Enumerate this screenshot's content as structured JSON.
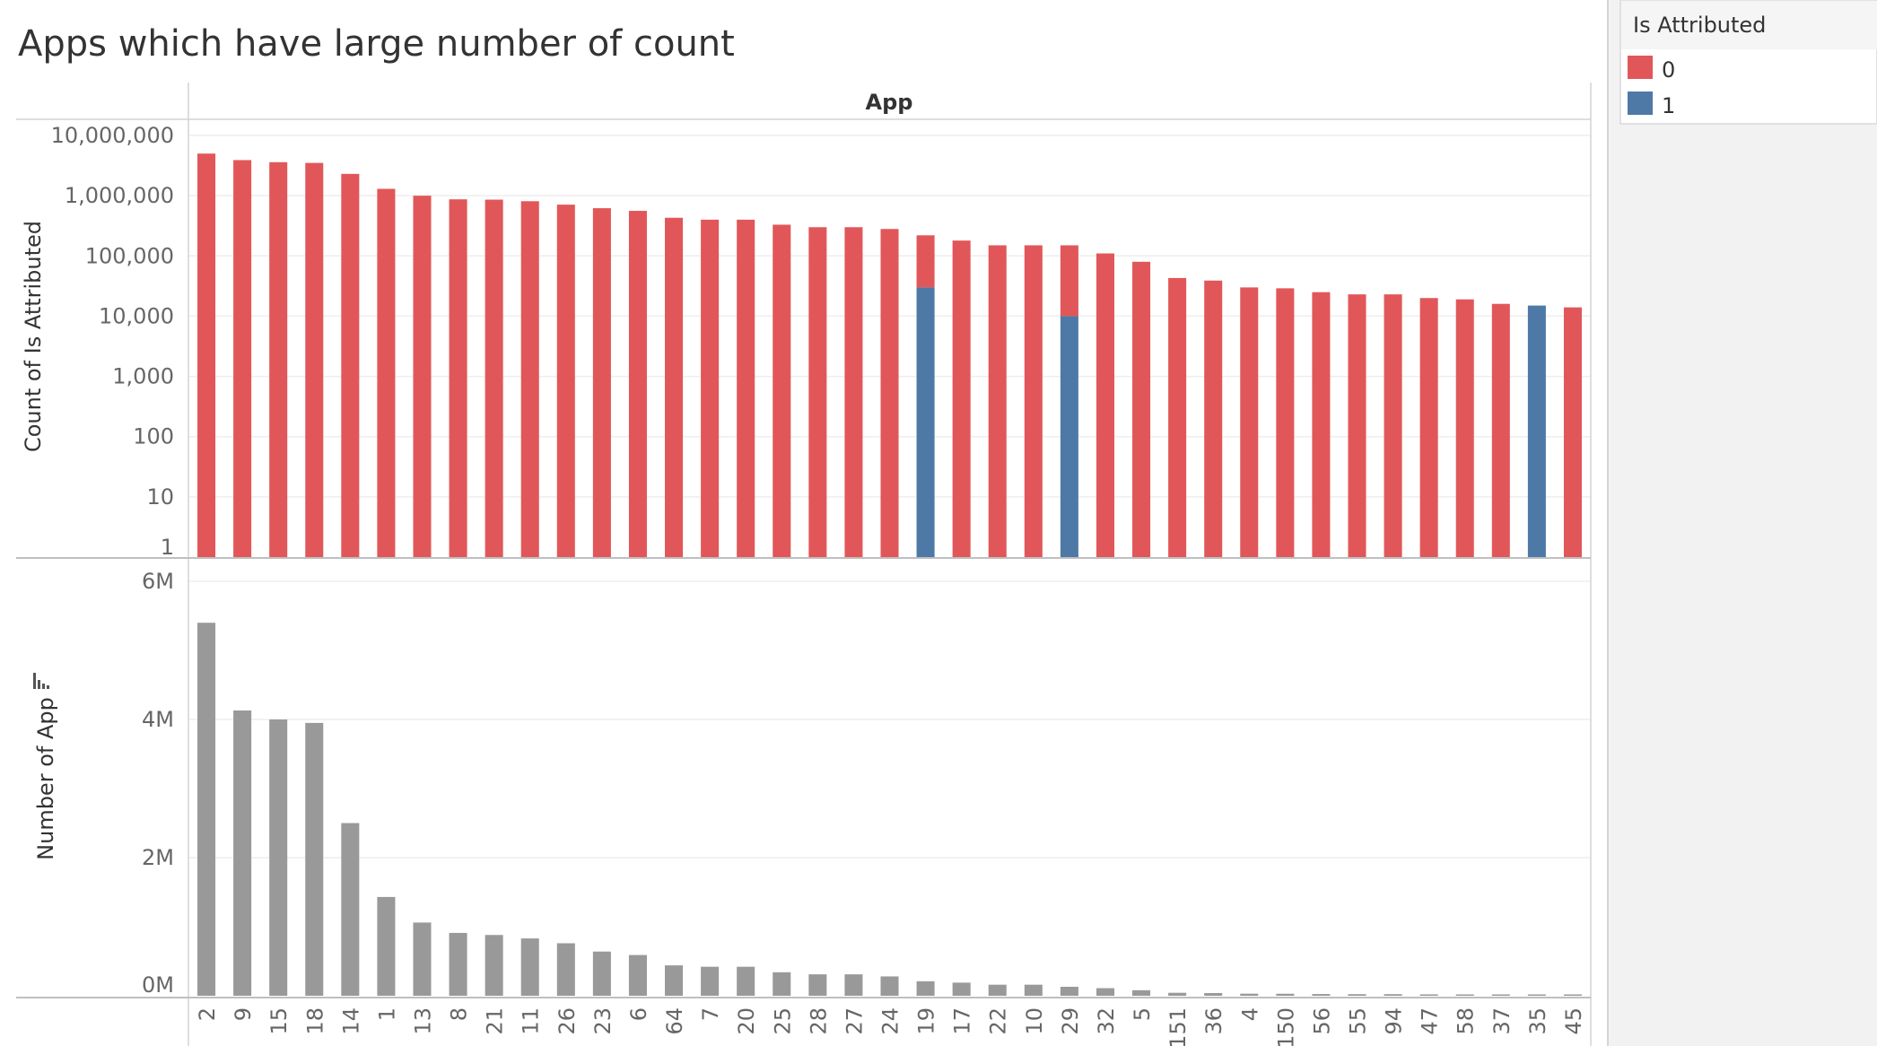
{
  "chart_data": {
    "title": "Apps which have large number of count",
    "column_header": "App",
    "categories": [
      "2",
      "9",
      "15",
      "18",
      "14",
      "1",
      "13",
      "8",
      "21",
      "11",
      "26",
      "23",
      "6",
      "64",
      "7",
      "20",
      "25",
      "28",
      "27",
      "24",
      "19",
      "17",
      "22",
      "10",
      "29",
      "32",
      "5",
      "151",
      "36",
      "4",
      "150",
      "56",
      "55",
      "94",
      "47",
      "58",
      "37",
      "35",
      "45"
    ],
    "legend": {
      "title": "Is Attributed",
      "entries": [
        {
          "label": "0",
          "color": "#e15759"
        },
        {
          "label": "1",
          "color": "#4e79a7"
        }
      ],
      "placement": "top-right"
    },
    "top_panel": {
      "type": "bar",
      "stacked": true,
      "scale": "log",
      "ylabel": "Count of Is Attributed",
      "ylim": [
        1,
        10000000
      ],
      "yticks": [
        1,
        10,
        100,
        1000,
        10000,
        100000,
        1000000,
        10000000
      ],
      "ytick_labels": [
        "1",
        "10",
        "100",
        "1,000",
        "10,000",
        "100,000",
        "1,000,000",
        "10,000,000"
      ],
      "series": [
        {
          "name": "0",
          "color": "#e15759",
          "values": [
            5000000,
            3900000,
            3600000,
            3500000,
            2300000,
            1300000,
            1000000,
            870000,
            860000,
            810000,
            710000,
            620000,
            560000,
            430000,
            400000,
            400000,
            330000,
            300000,
            300000,
            280000,
            190000,
            180000,
            150000,
            150000,
            140000,
            110000,
            80000,
            43000,
            39000,
            30000,
            29000,
            25000,
            23000,
            23000,
            20000,
            19000,
            16000,
            0,
            14000
          ]
        },
        {
          "name": "1",
          "color": "#4e79a7",
          "values": [
            0,
            0,
            0,
            0,
            0,
            0,
            0,
            0,
            0,
            0,
            0,
            0,
            0,
            0,
            0,
            0,
            0,
            0,
            0,
            0,
            30000,
            0,
            0,
            0,
            10000,
            0,
            0,
            0,
            0,
            0,
            0,
            0,
            0,
            0,
            0,
            0,
            0,
            15000,
            0
          ]
        }
      ]
    },
    "bottom_panel": {
      "type": "bar",
      "ylabel": "Number of App",
      "ylim": [
        0,
        6000000
      ],
      "yticks": [
        0,
        2000000,
        4000000,
        6000000
      ],
      "ytick_labels": [
        "0M",
        "2M",
        "4M",
        "6M"
      ],
      "color": "#999999",
      "values": [
        5400000,
        4130000,
        4000000,
        3950000,
        2500000,
        1430000,
        1060000,
        910000,
        880000,
        830000,
        760000,
        640000,
        590000,
        440000,
        420000,
        420000,
        340000,
        310000,
        310000,
        280000,
        210000,
        190000,
        160000,
        160000,
        130000,
        110000,
        80000,
        43000,
        39000,
        30000,
        29000,
        25000,
        23000,
        23000,
        20000,
        19000,
        16000,
        15000,
        14000
      ]
    },
    "grid": true
  }
}
